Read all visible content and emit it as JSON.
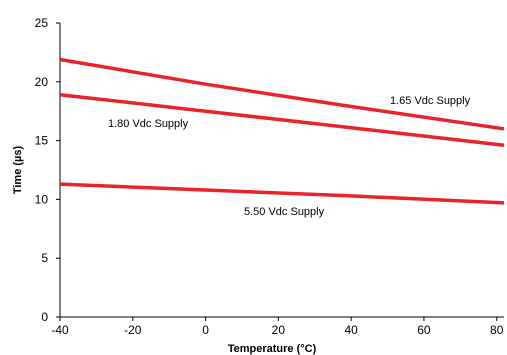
{
  "chart_data": {
    "type": "line",
    "title": "",
    "xlabel": "Temperature (°C)",
    "ylabel": "Time (µs)",
    "xlim": [
      -40,
      82
    ],
    "ylim": [
      0,
      25
    ],
    "x_ticks": [
      -40,
      -20,
      0,
      20,
      40,
      60,
      80
    ],
    "y_ticks": [
      0,
      5,
      10,
      15,
      20,
      25
    ],
    "grid": false,
    "line_color": "#e8232a",
    "series": [
      {
        "name": "1.65 Vdc Supply",
        "x": [
          -40,
          0,
          40,
          82
        ],
        "y": [
          21.9,
          19.8,
          17.9,
          16.0
        ]
      },
      {
        "name": "1.80 Vdc Supply",
        "x": [
          -40,
          0,
          40,
          82
        ],
        "y": [
          18.9,
          17.5,
          16.1,
          14.6
        ]
      },
      {
        "name": "5.50 Vdc Supply",
        "x": [
          -40,
          0,
          40,
          82
        ],
        "y": [
          11.3,
          10.8,
          10.3,
          9.7
        ]
      }
    ]
  }
}
